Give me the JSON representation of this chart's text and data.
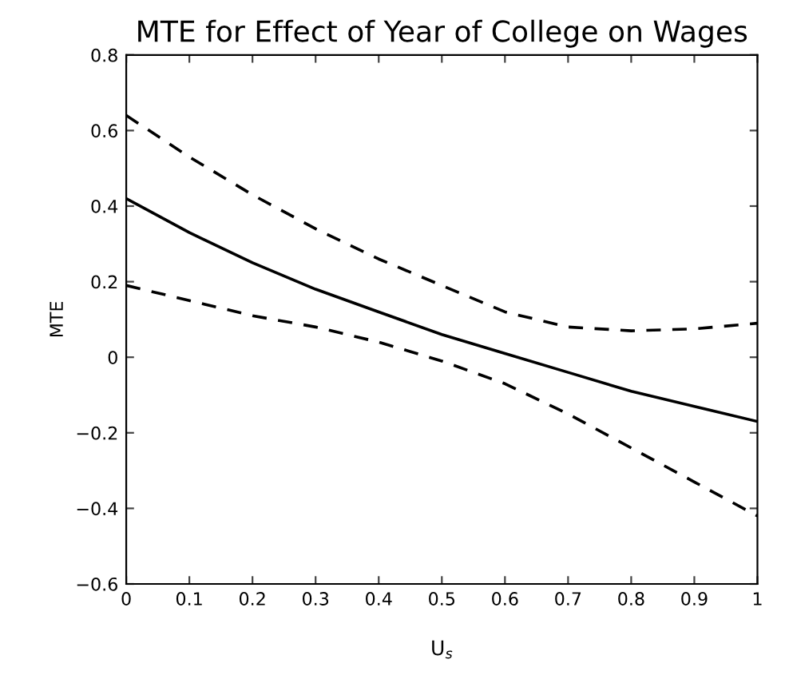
{
  "chart_data": {
    "type": "line",
    "title": "MTE for Effect of Year of College on Wages",
    "xlabel": "U$_{s}$",
    "ylabel": "MTE",
    "x": [
      0,
      0.1,
      0.2,
      0.3,
      0.4,
      0.5,
      0.6,
      0.7,
      0.8,
      0.9,
      1
    ],
    "series": [
      {
        "color": "#000000",
        "line_style": "solid",
        "values": [
          0.42,
          0.33,
          0.25,
          0.18,
          0.12,
          0.06,
          0.01,
          -0.04,
          -0.09,
          -0.13,
          -0.17
        ]
      },
      {
        "color": "#000000",
        "line_style": "dashed",
        "values": [
          0.64,
          0.53,
          0.43,
          0.34,
          0.26,
          0.19,
          0.12,
          0.08,
          0.07,
          0.075,
          0.09
        ]
      },
      {
        "color": "#000000",
        "line_style": "dashed",
        "values": [
          0.19,
          0.15,
          0.11,
          0.08,
          0.04,
          -0.01,
          -0.07,
          -0.15,
          -0.24,
          -0.33,
          -0.42
        ]
      }
    ],
    "xlim": [
      0,
      1
    ],
    "xticks": [
      0,
      0.1,
      0.2,
      0.3,
      0.4,
      0.5,
      0.6,
      0.7,
      0.8,
      0.9,
      1
    ],
    "ylim": [
      -0.6,
      0.8
    ],
    "yticks": [
      {
        "value": -0.6,
        "label": "−0.6"
      },
      {
        "value": -0.4,
        "label": "−0.4"
      },
      {
        "value": -0.2,
        "label": "−0.2"
      },
      0,
      0.2,
      0.4,
      0.6,
      0.8
    ],
    "grid": false,
    "marker": "none"
  }
}
